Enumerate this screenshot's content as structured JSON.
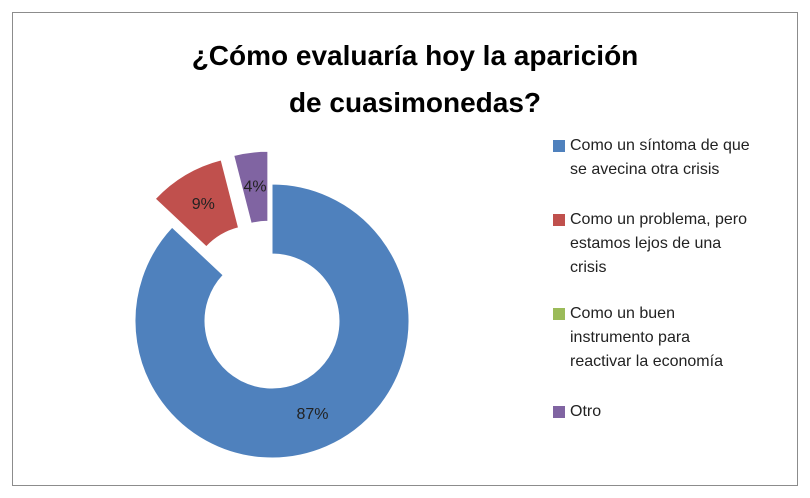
{
  "chart_data": {
    "type": "donut",
    "title": "¿Cómo evaluaría hoy la aparición de cuasimonedas?",
    "categories": [
      "Como un síntoma de que se avecina otra crisis",
      "Como un problema, pero estamos lejos de una crisis",
      "Como un buen instrumento para reactivar la economía",
      "Otro"
    ],
    "values": [
      87,
      9,
      0,
      4
    ],
    "value_labels": [
      "87%",
      "9%",
      null,
      "4%"
    ],
    "colors": [
      "#4f81bd",
      "#c0504d",
      "#9bbb59",
      "#8064a2"
    ],
    "legend": "right"
  }
}
